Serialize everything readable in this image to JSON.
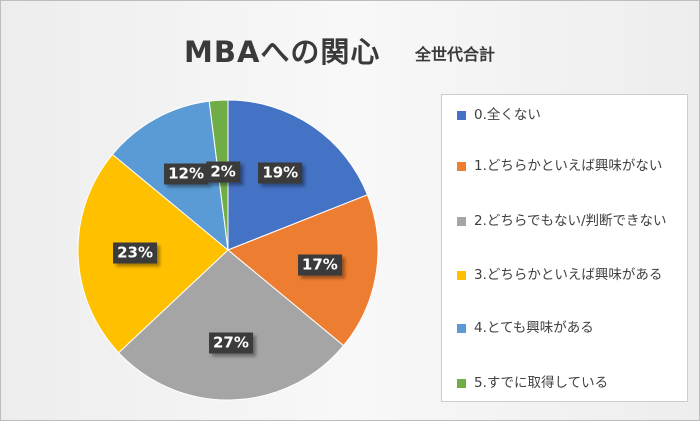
{
  "colors": {
    "blue": "#4472c4",
    "orange": "#ed7d31",
    "gray": "#a5a5a5",
    "yellow": "#ffc000",
    "lightblue": "#5b9bd5",
    "green": "#70ad47"
  },
  "chart_data": {
    "type": "pie",
    "title": "MBAへの関心",
    "subtitle": "全世代合計",
    "legend_position": "right",
    "slices": [
      {
        "label": "0.全くない",
        "value": 19,
        "display": "19%",
        "color": "#4472c4"
      },
      {
        "label": "1.どちらかといえば興味がない",
        "value": 17,
        "display": "17%",
        "color": "#ed7d31"
      },
      {
        "label": "2.どちらでもない/判断できない",
        "value": 27,
        "display": "27%",
        "color": "#a5a5a5"
      },
      {
        "label": "3.どちらかといえば興味がある",
        "value": 23,
        "display": "23%",
        "color": "#ffc000"
      },
      {
        "label": "4.とても興味がある",
        "value": 12,
        "display": "12%",
        "color": "#5b9bd5"
      },
      {
        "label": "5.すでに取得している",
        "value": 2,
        "display": "2%",
        "color": "#70ad47"
      }
    ]
  }
}
